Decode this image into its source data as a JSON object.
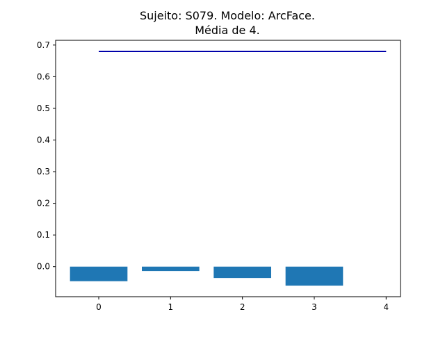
{
  "chart_data": {
    "type": "bar",
    "title_lines": [
      "Sujeito: S079. Modelo: ArcFace.",
      "Média de 4."
    ],
    "xlabel": "",
    "ylabel": "",
    "x": [
      0,
      1,
      2,
      3
    ],
    "values": [
      -0.046,
      -0.014,
      -0.036,
      -0.06
    ],
    "bar_color": "#1f77b4",
    "xlim": [
      -0.6,
      4.2
    ],
    "ylim": [
      -0.095,
      0.715
    ],
    "xticks": [
      0,
      1,
      2,
      3,
      4
    ],
    "yticks": [
      0.0,
      0.1,
      0.2,
      0.3,
      0.4,
      0.5,
      0.6,
      0.7
    ],
    "ytick_labels": [
      "0.0",
      "0.1",
      "0.2",
      "0.3",
      "0.4",
      "0.5",
      "0.6",
      "0.7"
    ],
    "reference_line": {
      "y": 0.68,
      "x_start": 0,
      "x_end": 4,
      "color": "#0000aa"
    },
    "grid": false,
    "legend": "none"
  }
}
